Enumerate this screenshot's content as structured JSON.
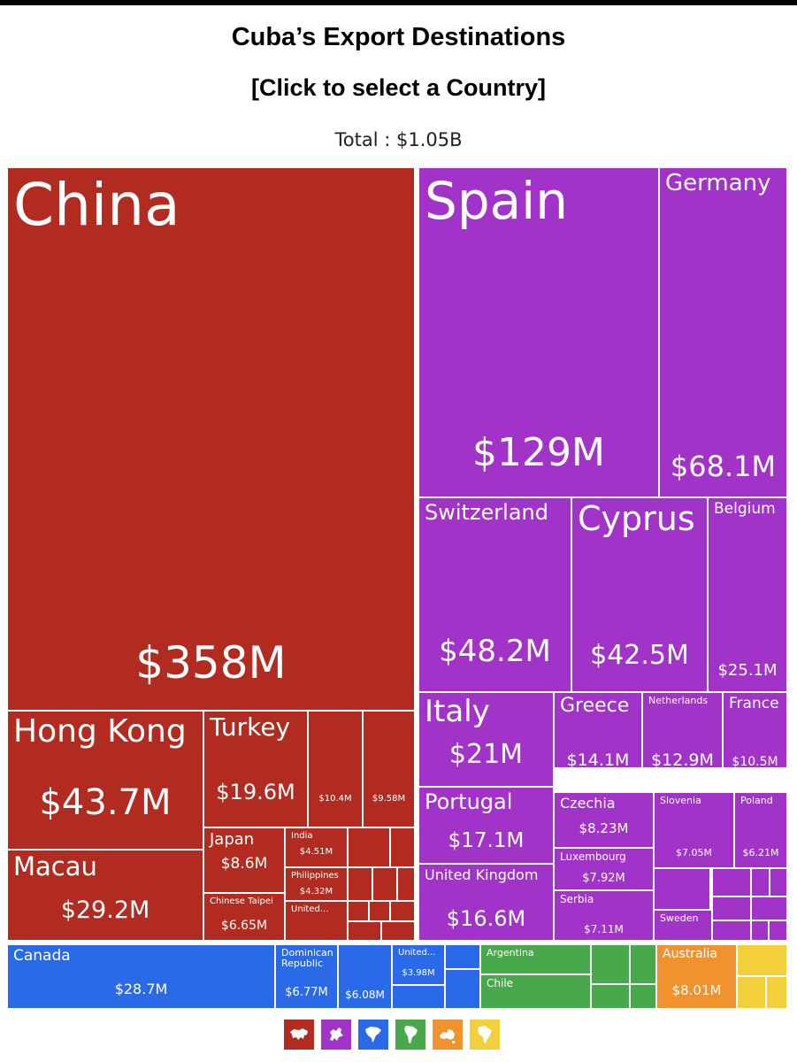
{
  "header": {
    "title": "Cuba’s Export Destinations",
    "subtitle": "[Click to select a Country]",
    "total": "Total : $1.05B"
  },
  "colors": {
    "asia": "#b22b20",
    "europe": "#a233c8",
    "north_america": "#2a6ae8",
    "south_america": "#48a84c",
    "oceania": "#f0922e",
    "africa": "#f4cf3c"
  },
  "chart_data": {
    "type": "treemap",
    "total": "$1.05B",
    "items": [
      {
        "name": "China",
        "value": "$358M",
        "region": "asia"
      },
      {
        "name": "Hong Kong",
        "value": "$43.7M",
        "region": "asia"
      },
      {
        "name": "Turkey",
        "value": "$19.6M",
        "region": "asia"
      },
      {
        "name": "",
        "value": "$10.4M",
        "region": "asia"
      },
      {
        "name": "",
        "value": "$9.58M",
        "region": "asia"
      },
      {
        "name": "Macau",
        "value": "$29.2M",
        "region": "asia"
      },
      {
        "name": "Japan",
        "value": "$8.6M",
        "region": "asia"
      },
      {
        "name": "India",
        "value": "$4.51M",
        "region": "asia"
      },
      {
        "name": "Philippines",
        "value": "$4.32M",
        "region": "asia"
      },
      {
        "name": "Chinese Taipei",
        "value": "$6.65M",
        "region": "asia"
      },
      {
        "name": "United...",
        "value": "",
        "region": "asia"
      },
      {
        "name": "Spain",
        "value": "$129M",
        "region": "europe"
      },
      {
        "name": "Germany",
        "value": "$68.1M",
        "region": "europe"
      },
      {
        "name": "Switzerland",
        "value": "$48.2M",
        "region": "europe"
      },
      {
        "name": "Cyprus",
        "value": "$42.5M",
        "region": "europe"
      },
      {
        "name": "Belgium",
        "value": "$25.1M",
        "region": "europe"
      },
      {
        "name": "Italy",
        "value": "$21M",
        "region": "europe"
      },
      {
        "name": "Greece",
        "value": "$14.1M",
        "region": "europe"
      },
      {
        "name": "Netherlands",
        "value": "$12.9M",
        "region": "europe"
      },
      {
        "name": "France",
        "value": "$10.5M",
        "region": "europe"
      },
      {
        "name": "Portugal",
        "value": "$17.1M",
        "region": "europe"
      },
      {
        "name": "Czechia",
        "value": "$8.23M",
        "region": "europe"
      },
      {
        "name": "Slovenia",
        "value": "$7.05M",
        "region": "europe"
      },
      {
        "name": "Poland",
        "value": "$6.21M",
        "region": "europe"
      },
      {
        "name": "Luxembourg",
        "value": "$7.92M",
        "region": "europe"
      },
      {
        "name": "United Kingdom",
        "value": "$16.6M",
        "region": "europe"
      },
      {
        "name": "Serbia",
        "value": "$7.11M",
        "region": "europe"
      },
      {
        "name": "Sweden",
        "value": "",
        "region": "europe"
      },
      {
        "name": "Canada",
        "value": "$28.7M",
        "region": "north_america"
      },
      {
        "name": "Dominican Republic",
        "value": "$6.77M",
        "region": "north_america"
      },
      {
        "name": "",
        "value": "$6.08M",
        "region": "north_america"
      },
      {
        "name": "United...",
        "value": "$3.98M",
        "region": "north_america"
      },
      {
        "name": "Argentina",
        "value": "",
        "region": "south_america"
      },
      {
        "name": "Chile",
        "value": "",
        "region": "south_america"
      },
      {
        "name": "Australia",
        "value": "$8.01M",
        "region": "oceania"
      }
    ]
  },
  "legend": {
    "icons": [
      "asia-map-icon",
      "europe-map-icon",
      "north-america-map-icon",
      "south-america-map-icon",
      "oceania-map-icon",
      "africa-map-icon"
    ]
  }
}
